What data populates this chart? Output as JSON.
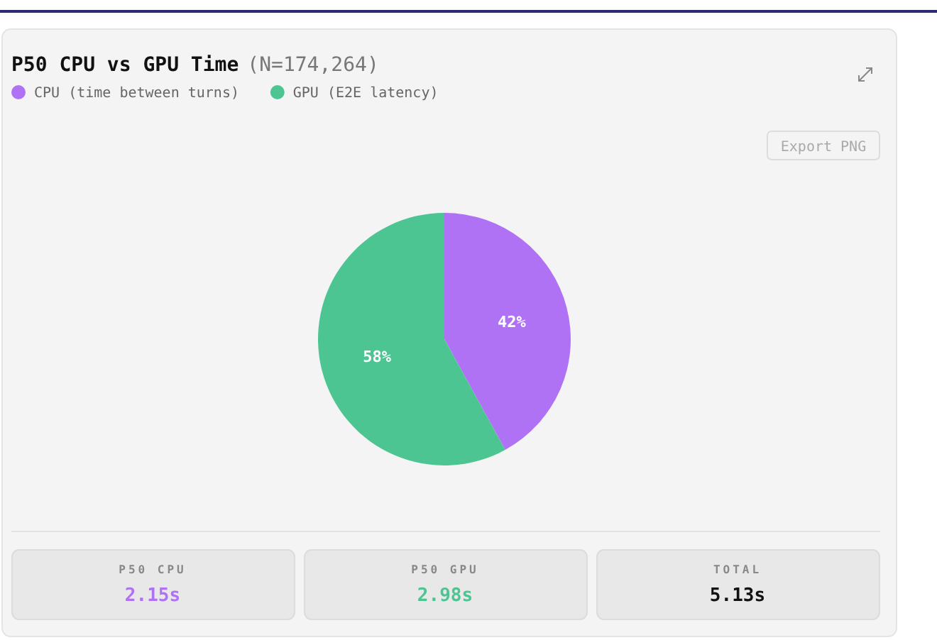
{
  "chart_data": {
    "type": "pie",
    "title": "P50 CPU vs GPU Time",
    "subtitle": "(N=174,264)",
    "categories": [
      "CPU (time between turns)",
      "GPU (E2E latency)"
    ],
    "values": [
      42,
      58
    ],
    "colors": [
      "#b072f5",
      "#4cc593"
    ],
    "value_labels": [
      "42%",
      "58%"
    ],
    "legend": "top left",
    "annotations": [
      "Export PNG",
      "P50 CPU",
      "2.15s",
      "P50 GPU",
      "2.98s",
      "TOTAL",
      "5.13s"
    ]
  }
}
